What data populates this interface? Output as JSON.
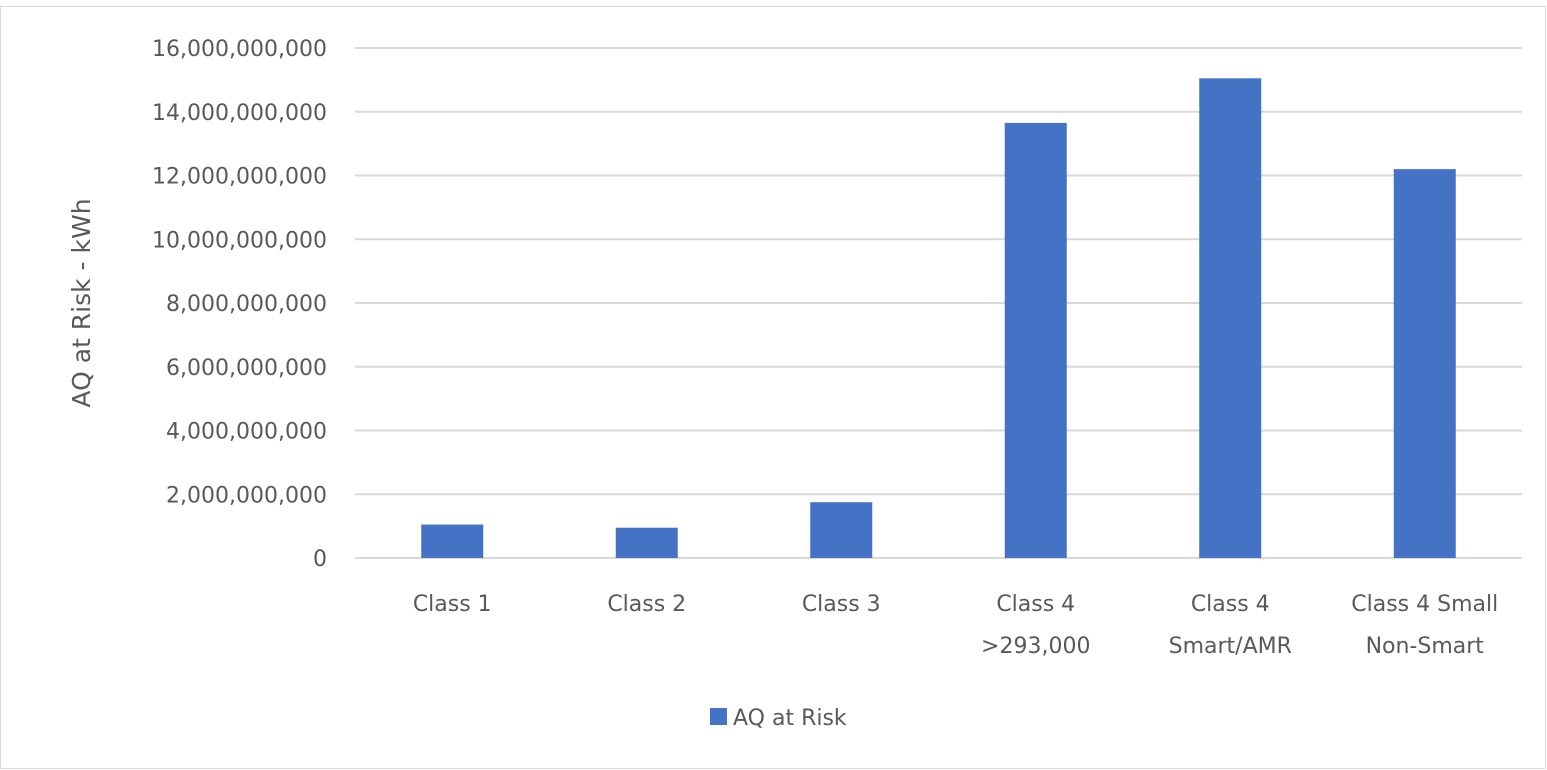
{
  "chart_data": {
    "type": "bar",
    "title": "",
    "xlabel": "",
    "ylabel": "AQ at Risk - kWh",
    "ylim": [
      0,
      16000000000
    ],
    "yticks": [
      "0",
      "2,000,000,000",
      "4,000,000,000",
      "6,000,000,000",
      "8,000,000,000",
      "10,000,000,000",
      "12,000,000,000",
      "14,000,000,000",
      "16,000,000,000"
    ],
    "grid": true,
    "legend_position": "bottom",
    "categories": [
      [
        "Class 1"
      ],
      [
        "Class 2"
      ],
      [
        "Class 3"
      ],
      [
        "Class 4",
        ">293,000"
      ],
      [
        "Class 4",
        "Smart/AMR"
      ],
      [
        "Class 4 Small",
        "Non-Smart"
      ]
    ],
    "series": [
      {
        "name": "AQ at Risk",
        "color": "#4472c4",
        "values": [
          1050000000,
          950000000,
          1750000000,
          13650000000,
          15050000000,
          12200000000
        ]
      }
    ]
  }
}
